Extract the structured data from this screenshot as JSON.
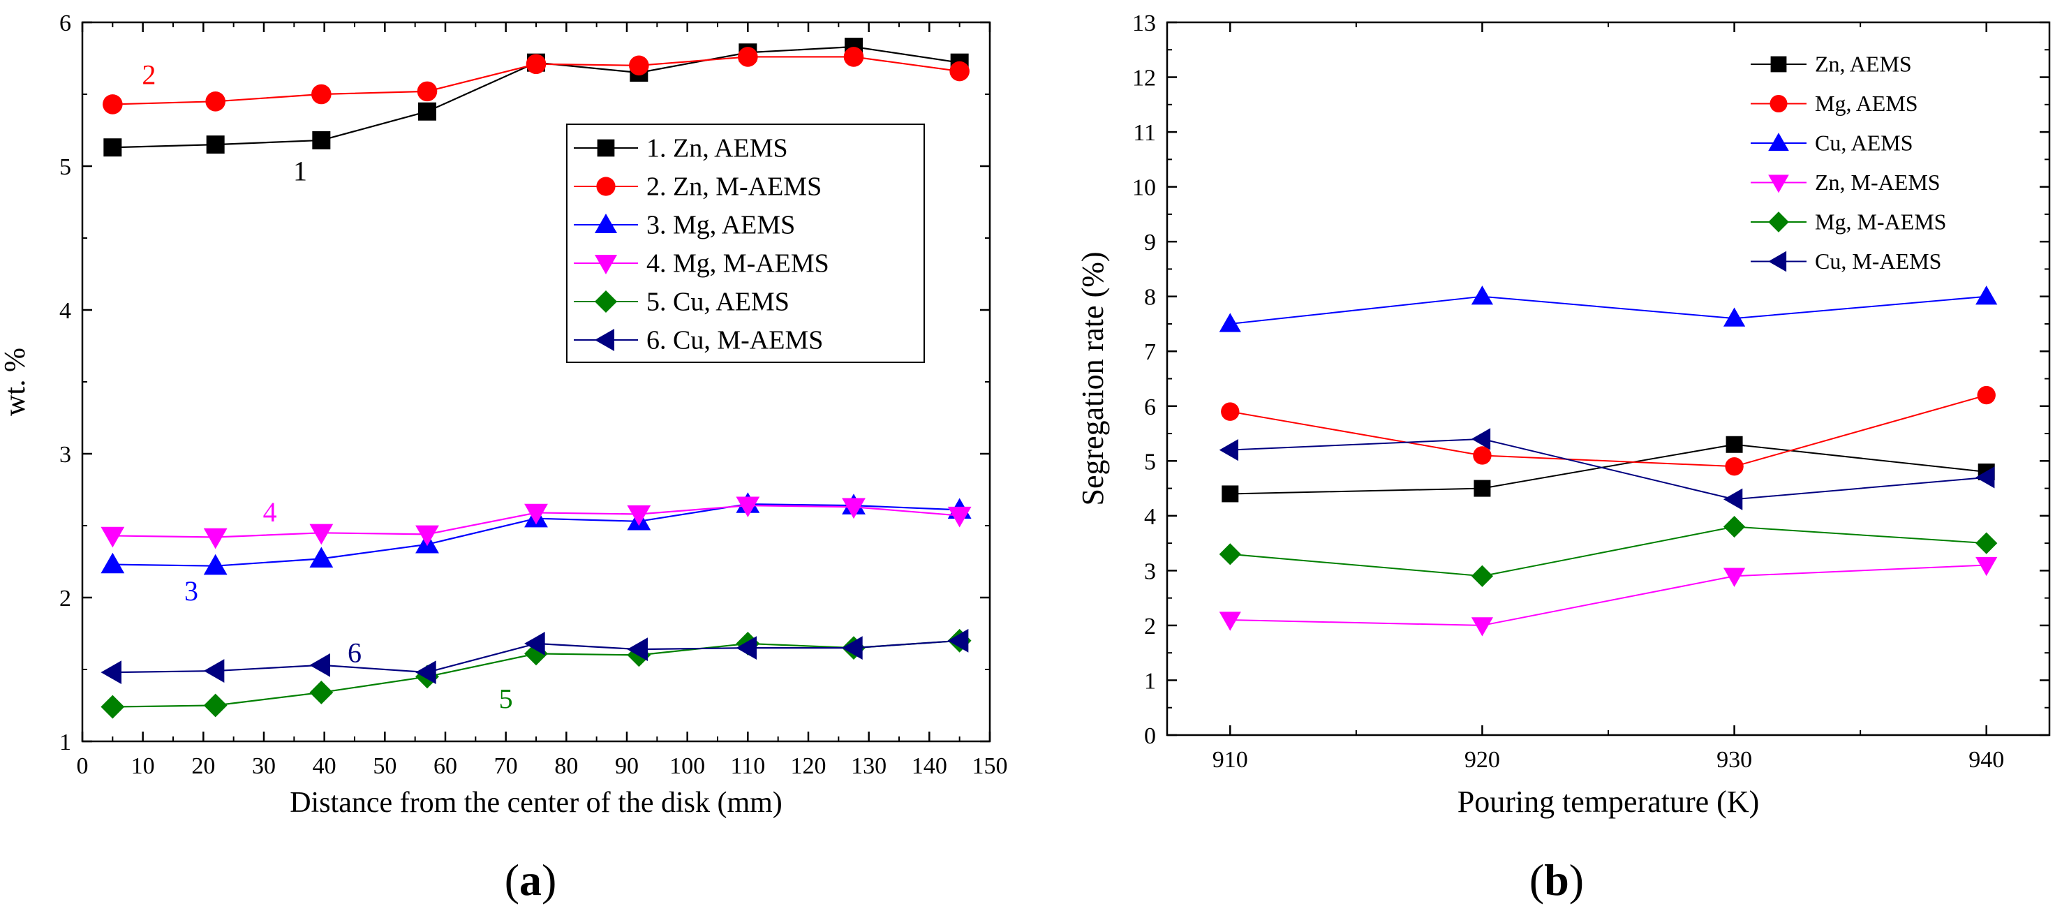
{
  "chart_data": [
    {
      "type": "line",
      "panel_label": "(a)",
      "xlabel": "Distance from the center of the disk (mm)",
      "ylabel": "wt. %",
      "xlim": [
        0,
        150
      ],
      "ylim": [
        1,
        6
      ],
      "xticks": [
        0,
        10,
        20,
        30,
        40,
        50,
        60,
        70,
        80,
        90,
        100,
        110,
        120,
        130,
        140,
        150
      ],
      "yticks": [
        1,
        2,
        3,
        4,
        5,
        6
      ],
      "grid": false,
      "legend_position": "center-right",
      "x": [
        5,
        22,
        39.5,
        57,
        75,
        92,
        110,
        127.5,
        145
      ],
      "series": [
        {
          "name": "1. Zn, AEMS",
          "marker": "square",
          "color": "#000000",
          "values": [
            5.13,
            5.15,
            5.18,
            5.38,
            5.72,
            5.65,
            5.79,
            5.83,
            5.72
          ]
        },
        {
          "name": "2. Zn, M-AEMS",
          "marker": "circle",
          "color": "#ff0000",
          "values": [
            5.43,
            5.45,
            5.5,
            5.52,
            5.71,
            5.7,
            5.76,
            5.76,
            5.66
          ]
        },
        {
          "name": "3. Mg, AEMS",
          "marker": "triangle-up",
          "color": "#0000ff",
          "values": [
            2.23,
            2.22,
            2.27,
            2.37,
            2.55,
            2.53,
            2.65,
            2.64,
            2.61
          ]
        },
        {
          "name": "4. Mg, M-AEMS",
          "marker": "triangle-down",
          "color": "#ff00ff",
          "values": [
            2.43,
            2.42,
            2.45,
            2.44,
            2.59,
            2.58,
            2.64,
            2.63,
            2.57
          ]
        },
        {
          "name": "5. Cu, AEMS",
          "marker": "diamond",
          "color": "#008000",
          "values": [
            1.24,
            1.25,
            1.34,
            1.45,
            1.61,
            1.6,
            1.68,
            1.65,
            1.7
          ]
        },
        {
          "name": "6. Cu, M-AEMS",
          "marker": "triangle-left",
          "color": "#000080",
          "values": [
            1.48,
            1.49,
            1.53,
            1.48,
            1.68,
            1.64,
            1.65,
            1.65,
            1.7
          ]
        }
      ],
      "annotations": [
        {
          "text": "1",
          "x": 36,
          "y": 4.9,
          "color": "#000000"
        },
        {
          "text": "2",
          "x": 11,
          "y": 5.57,
          "color": "#ff0000"
        },
        {
          "text": "3",
          "x": 18,
          "y": 1.98,
          "color": "#0000ff"
        },
        {
          "text": "4",
          "x": 31,
          "y": 2.53,
          "color": "#ff00ff"
        },
        {
          "text": "5",
          "x": 70,
          "y": 1.23,
          "color": "#008000"
        },
        {
          "text": "6",
          "x": 45,
          "y": 1.55,
          "color": "#000080"
        }
      ]
    },
    {
      "type": "line",
      "panel_label": "(b)",
      "xlabel": "Pouring temperature (K)",
      "ylabel": "Segregation rate  (%)",
      "xlim": [
        907.5,
        942.5
      ],
      "ylim": [
        0,
        13
      ],
      "xticks": [
        910,
        920,
        930,
        940
      ],
      "yticks": [
        0,
        1,
        2,
        3,
        4,
        5,
        6,
        7,
        8,
        9,
        10,
        11,
        12,
        13
      ],
      "grid": false,
      "legend_position": "top-right",
      "x": [
        910,
        920,
        930,
        940
      ],
      "series": [
        {
          "name": "Zn, AEMS",
          "marker": "square",
          "color": "#000000",
          "values": [
            4.4,
            4.5,
            5.3,
            4.8
          ]
        },
        {
          "name": "Mg, AEMS",
          "marker": "circle",
          "color": "#ff0000",
          "values": [
            5.9,
            5.1,
            4.9,
            6.2
          ]
        },
        {
          "name": "Cu, AEMS",
          "marker": "triangle-up",
          "color": "#0000ff",
          "values": [
            7.5,
            8.0,
            7.6,
            8.0
          ]
        },
        {
          "name": "Zn, M-AEMS",
          "marker": "triangle-down",
          "color": "#ff00ff",
          "values": [
            2.1,
            2.0,
            2.9,
            3.1
          ]
        },
        {
          "name": "Mg, M-AEMS",
          "marker": "diamond",
          "color": "#008000",
          "values": [
            3.3,
            2.9,
            3.8,
            3.5
          ]
        },
        {
          "name": "Cu, M-AEMS",
          "marker": "triangle-left",
          "color": "#000080",
          "values": [
            5.2,
            5.4,
            4.3,
            4.7
          ]
        }
      ]
    }
  ]
}
